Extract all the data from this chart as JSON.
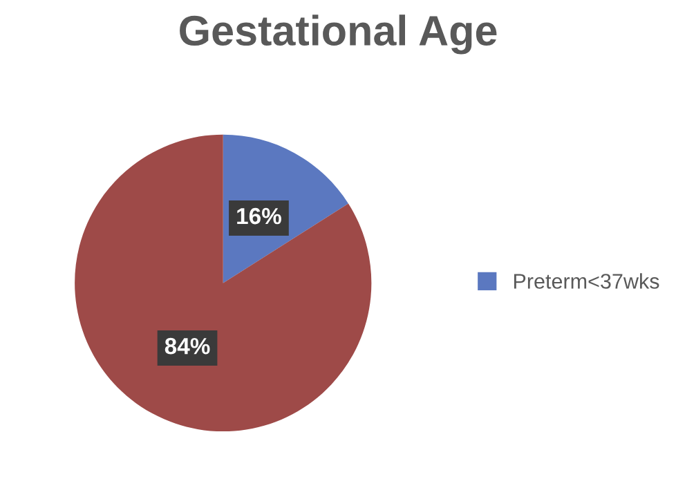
{
  "chart_data": {
    "type": "pie",
    "title": "Gestational Age",
    "categories": [
      "Preterm<37wks",
      null
    ],
    "values": [
      16,
      84
    ],
    "colors": [
      "#5b78c0",
      "#9e4a48"
    ],
    "value_labels": [
      "16%",
      "84%"
    ],
    "legend": "right"
  }
}
